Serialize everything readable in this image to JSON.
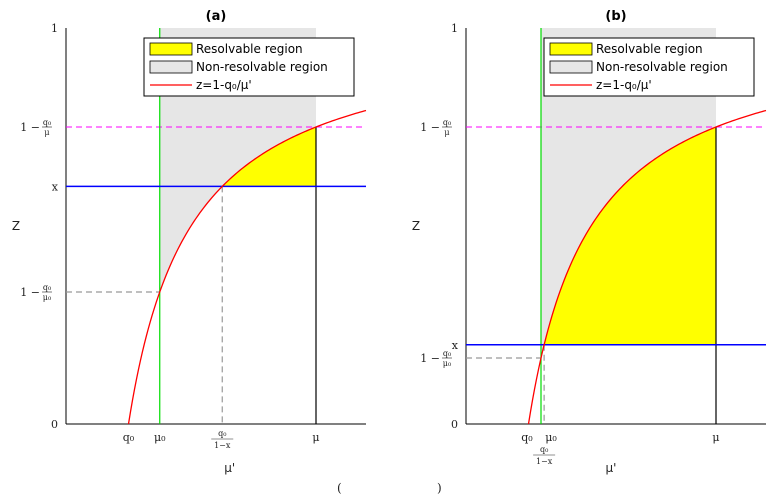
{
  "chart_data": [
    {
      "type": "area",
      "panel_label": "(a)",
      "ylabel": "Z",
      "xlabel": "μ'",
      "ylim": [
        0,
        1
      ],
      "y_ticks": [
        "0",
        "x",
        "1"
      ],
      "y_frac_ticks": [
        {
          "num": "q₀",
          "den": "μ",
          "prefix": "1 −"
        },
        {
          "num": "q₀",
          "den": "μ₀",
          "prefix": "1 −"
        }
      ],
      "x_ticks": [
        "q₀",
        "μ₀",
        "μ"
      ],
      "x_frac_tick": {
        "num": "q₀",
        "den": "1−x"
      },
      "params": {
        "q0": 0.5,
        "mu0": 0.75,
        "mu": 2.0,
        "x": 0.6
      },
      "legend": [
        "Resolvable region",
        "Non-resolvable region",
        "z=1-q₀/μ'"
      ],
      "colors": {
        "resolvable": "#ffff00",
        "non_resolvable": "#e6e6e6",
        "curve": "#ff0000",
        "x_line": "#0000ff",
        "mu0_line": "#00dd00",
        "dashed_top": "#ff00ff",
        "dashed_guides": "#999999"
      }
    },
    {
      "type": "area",
      "panel_label": "(b)",
      "ylabel": "Z",
      "xlabel": "μ'",
      "ylim": [
        0,
        1
      ],
      "y_ticks": [
        "0",
        "x",
        "1"
      ],
      "y_frac_ticks": [
        {
          "num": "q₀",
          "den": "μ",
          "prefix": "1 −"
        },
        {
          "num": "q₀",
          "den": "μ₀",
          "prefix": "1 −"
        }
      ],
      "x_ticks": [
        "q₀",
        "μ₀",
        "μ"
      ],
      "x_frac_tick": {
        "num": "q₀",
        "den": "1−x"
      },
      "params": {
        "q0": 0.5,
        "mu0": 0.6,
        "mu": 2.0,
        "x": 0.2
      },
      "legend": [
        "Resolvable region",
        "Non-resolvable region",
        "z=1-q₀/μ'"
      ],
      "colors": {
        "resolvable": "#ffff00",
        "non_resolvable": "#e6e6e6",
        "curve": "#ff0000",
        "x_line": "#0000ff",
        "mu0_line": "#00dd00",
        "dashed_top": "#ff00ff",
        "dashed_guides": "#999999"
      }
    }
  ],
  "caption": {
    "pre": "(",
    "post": ")"
  }
}
